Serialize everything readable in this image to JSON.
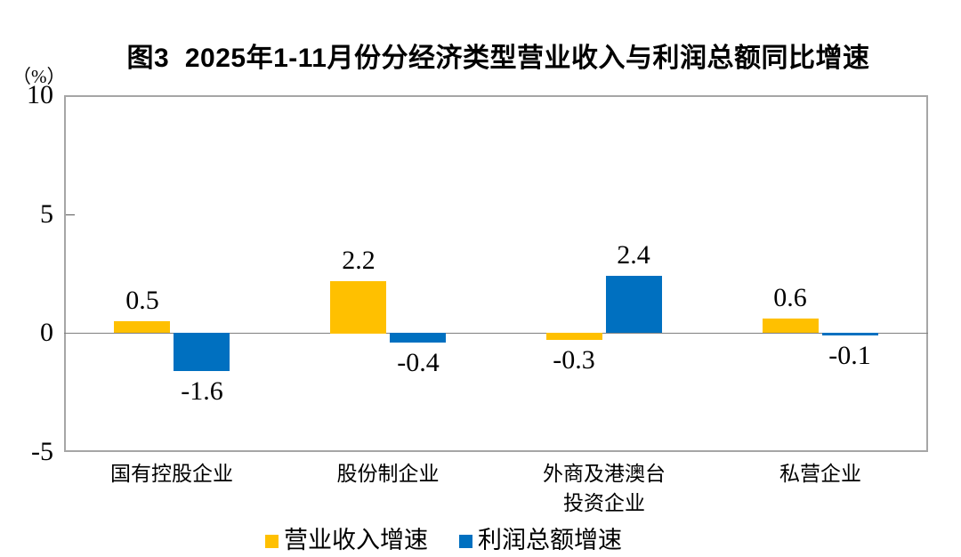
{
  "chart_data": {
    "type": "bar",
    "title": "图3  2025年1-11月份分经济类型营业收入与利润总额同比增速",
    "unit_label": "（%）",
    "categories": [
      "国有控股企业",
      "股份制企业",
      "外商及港澳台\n投资企业",
      "私营企业"
    ],
    "series": [
      {
        "name": "营业收入增速",
        "color": "#FFC000",
        "values": [
          0.5,
          2.2,
          -0.3,
          0.6
        ],
        "labels": [
          "0.5",
          "2.2",
          "-0.3",
          "0.6"
        ]
      },
      {
        "name": "利润总额增速",
        "color": "#0070C0",
        "values": [
          -1.6,
          -0.4,
          2.4,
          -0.1
        ],
        "labels": [
          "-1.6",
          "-0.4",
          "2.4",
          "-0.1"
        ]
      }
    ],
    "ylim": [
      -5,
      10
    ],
    "yticks": [
      10,
      5,
      0,
      -5
    ],
    "grid": false,
    "legend_position": "bottom",
    "frame_color": "#a6a6a6",
    "zero_line_color": "#808080"
  }
}
